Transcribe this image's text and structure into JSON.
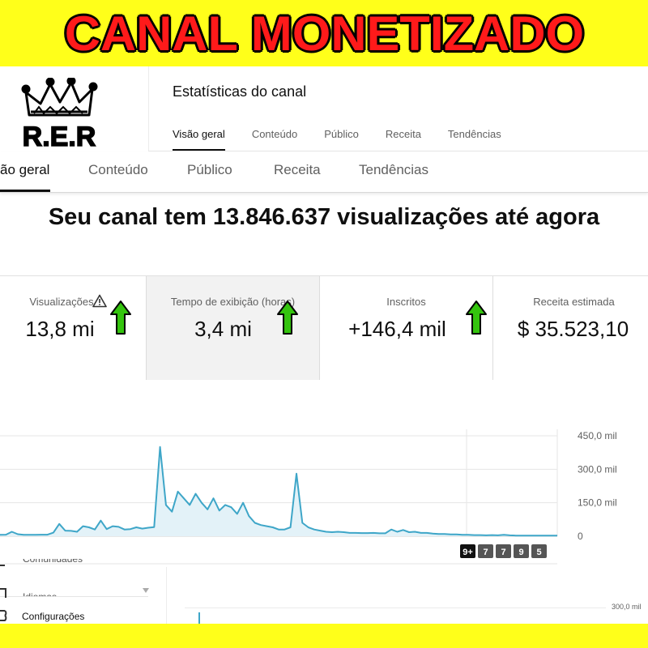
{
  "banner": {
    "headline": "CANAL MONETIZADO"
  },
  "logo": {
    "text": "R.E.R"
  },
  "studio": {
    "title": "Estatísticas do canal"
  },
  "small_tabs": [
    {
      "label": "Visão geral"
    },
    {
      "label": "Conteúdo"
    },
    {
      "label": "Público"
    },
    {
      "label": "Receita"
    },
    {
      "label": "Tendências"
    }
  ],
  "big_tabs": [
    {
      "label": "ão geral"
    },
    {
      "label": "Conteúdo"
    },
    {
      "label": "Público"
    },
    {
      "label": "Receita"
    },
    {
      "label": "Tendências"
    }
  ],
  "headline": "Seu canal tem 13.846.637 visualizações até agora",
  "cards": [
    {
      "label": "Visualizações",
      "value": "13,8 mi"
    },
    {
      "label": "Tempo de exibição (horas)",
      "value": "3,4 mi"
    },
    {
      "label": "Inscritos",
      "value": "+146,4 mil"
    },
    {
      "label": "Receita estimada",
      "value": "$ 35.523,10"
    }
  ],
  "colors": {
    "banner": "#ffff1a",
    "headline": "#ff1a1a",
    "line": "#3ea6c8",
    "arrow": "#34c40e"
  },
  "icons": {
    "warning": "warning-icon",
    "arrow": "arrow-up-icon"
  },
  "chart_data": {
    "type": "line",
    "y_ticks": [
      "450,0 mil",
      "300,0 mil",
      "150,0 mil",
      "0"
    ],
    "ylim": [
      0,
      450000
    ],
    "grid": true,
    "series": [
      {
        "values": [
          6000,
          7000,
          20000,
          9000,
          6000,
          6000,
          6000,
          7000,
          7000,
          16000,
          55000,
          25000,
          24000,
          20000,
          45000,
          40000,
          30000,
          70000,
          32000,
          45000,
          42000,
          30000,
          32000,
          40000,
          34000,
          38000,
          41000,
          400000,
          140000,
          110000,
          200000,
          170000,
          140000,
          190000,
          150000,
          120000,
          170000,
          115000,
          140000,
          130000,
          100000,
          150000,
          90000,
          60000,
          50000,
          45000,
          40000,
          30000,
          30000,
          40000,
          280000,
          60000,
          40000,
          30000,
          25000,
          20000,
          18000,
          20000,
          18000,
          15000,
          15000,
          14000,
          14000,
          15000,
          13000,
          13000,
          30000,
          20000,
          28000,
          18000,
          20000,
          15000,
          15000,
          12000,
          10000,
          10000,
          8000,
          8000,
          6000,
          6000,
          5000,
          5000,
          4000,
          5000,
          4000,
          6000,
          4000,
          3000,
          3000,
          3000,
          3000,
          3000,
          3000,
          3000,
          3000
        ]
      }
    ]
  },
  "chart_badges": [
    "9+",
    "7",
    "7",
    "9",
    "5"
  ],
  "sidebar": {
    "items": [
      {
        "label": "Comunidades"
      },
      {
        "label": "Idiomas"
      },
      {
        "label": "Configurações"
      }
    ]
  },
  "lower_chart": {
    "y_tick": "300,0 mil"
  }
}
